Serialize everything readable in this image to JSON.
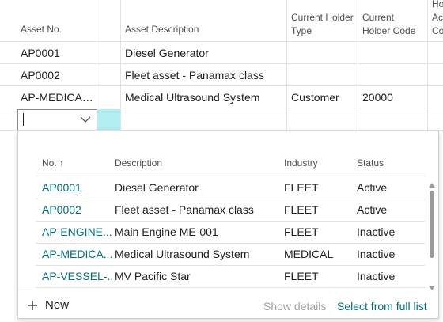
{
  "table": {
    "columns": [
      "Asset No.",
      "Asset Description",
      "Current Holder Type",
      "Current Holder Code",
      "Ho Ac Co"
    ],
    "rows": [
      {
        "asset_no": "AP0001",
        "description": "Diesel Generator"
      },
      {
        "asset_no": "AP0002",
        "description": "Fleet asset - Panamax class"
      },
      {
        "asset_no": "AP-MEDICAL...",
        "description": "Medical Ultrasound System",
        "holder_type": "Customer",
        "holder_code": "20000"
      }
    ]
  },
  "lookup": {
    "columns": [
      "No. ↑",
      "Description",
      "Industry",
      "Status"
    ],
    "rows": [
      [
        "AP0001",
        "Diesel Generator",
        "FLEET",
        "Active"
      ],
      [
        "AP0002",
        "Fleet asset - Panamax class",
        "FLEET",
        "Active"
      ],
      [
        "AP-ENGINE...",
        "Main Engine ME-001",
        "FLEET",
        "Inactive"
      ],
      [
        "AP-MEDICA...",
        "Medical Ultrasound System",
        "MEDICAL",
        "Inactive"
      ],
      [
        "AP-VESSEL-...",
        "MV Pacific Star",
        "FLEET",
        "Inactive"
      ]
    ],
    "footer": {
      "new": "New",
      "show_details": "Show details",
      "select_full_list": "Select from full list"
    }
  }
}
